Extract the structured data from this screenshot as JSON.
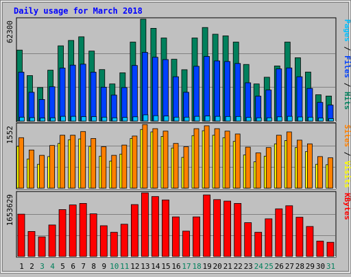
{
  "colors": {
    "background": "#c0c0c0",
    "plot_bg": "#c0c0c0",
    "gridline": "#808080",
    "title": "#0000ff",
    "hits": "#00805c",
    "files": "#0040ff",
    "pages": "#00c0ff",
    "visits": "#ffff00",
    "sites": "#ff8000",
    "kbytes": "#ff0000",
    "weekend_label": "#00805c",
    "weekday_label": "#000000"
  },
  "chart_data": {
    "type": "bar",
    "title": "Daily usage for March 2018",
    "categories": [
      "1",
      "2",
      "3",
      "4",
      "5",
      "6",
      "7",
      "8",
      "9",
      "10",
      "11",
      "12",
      "13",
      "14",
      "15",
      "16",
      "17",
      "18",
      "19",
      "20",
      "21",
      "22",
      "23",
      "24",
      "25",
      "26",
      "27",
      "28",
      "29",
      "30",
      "31"
    ],
    "weekend_days": [
      "3",
      "4",
      "10",
      "11",
      "17",
      "18",
      "24",
      "25",
      "31"
    ],
    "panels": [
      {
        "id": "top",
        "max_label": "62300",
        "ymax": 62300,
        "legend": [
          {
            "text": "Pages",
            "color": "#00c0ff"
          },
          {
            "text": " / ",
            "color": "#000000"
          },
          {
            "text": "Files",
            "color": "#0040ff"
          },
          {
            "text": " / ",
            "color": "#000000"
          },
          {
            "text": "Hits",
            "color": "#00805c"
          }
        ],
        "series": [
          {
            "name": "Hits",
            "color": "#00805c",
            "values": [
              43400,
              27800,
              20500,
              31100,
              46000,
              49300,
              51500,
              42800,
              31500,
              22700,
              29500,
              48300,
              62300,
              56700,
              50800,
              37800,
              31400,
              50800,
              57200,
              53100,
              52100,
              48300,
              34600,
              22700,
              26800,
              33700,
              48300,
              38700,
              30000,
              16100,
              15300
            ]
          },
          {
            "name": "Files",
            "color": "#0040ff",
            "values": [
              29900,
              17600,
              13200,
              21000,
              32400,
              34200,
              34800,
              29900,
              20700,
              15900,
              20500,
              34000,
              42000,
              39000,
              37600,
              27100,
              17600,
              33500,
              39500,
              36800,
              36400,
              35200,
              23400,
              15200,
              19000,
              31900,
              32500,
              27100,
              20000,
              11400,
              9800
            ]
          },
          {
            "name": "Pages",
            "color": "#00c0ff",
            "values": [
              2400,
              2100,
              1900,
              2000,
              2900,
              2900,
              2700,
              2700,
              2400,
              2000,
              2200,
              2600,
              3800,
              3300,
              3100,
              2400,
              2400,
              2900,
              3100,
              2900,
              2800,
              2800,
              2200,
              2000,
              2000,
              2600,
              2900,
              2500,
              2400,
              1900,
              1500
            ]
          }
        ]
      },
      {
        "id": "middle",
        "max_label": "1552",
        "ymax": 1552,
        "legend": [
          {
            "text": "Sites",
            "color": "#ff8000"
          },
          {
            "text": " / ",
            "color": "#000000"
          },
          {
            "text": "Visits",
            "color": "#ffff00"
          }
        ],
        "series": [
          {
            "name": "Visits",
            "color": "#ffff00",
            "values": [
              1020,
              710,
              580,
              770,
              1090,
              1180,
              1200,
              1020,
              780,
              660,
              830,
              1210,
              1430,
              1370,
              1260,
              980,
              750,
              1280,
              1400,
              1290,
              1230,
              1140,
              810,
              640,
              780,
              1080,
              1160,
              990,
              890,
              580,
              570
            ]
          },
          {
            "name": "Sites",
            "color": "#ff8000",
            "values": [
              1230,
              930,
              800,
              1040,
              1290,
              1290,
              1380,
              1210,
              1010,
              800,
              1050,
              1270,
              1550,
              1450,
              1390,
              1090,
              1010,
              1450,
              1520,
              1450,
              1390,
              1320,
              1000,
              860,
              990,
              1290,
              1370,
              1170,
              1080,
              770,
              740
            ]
          }
        ]
      },
      {
        "id": "bottom",
        "max_label": "1653629",
        "ymax": 1653629,
        "legend": [
          {
            "text": "KBytes",
            "color": "#ff0000"
          }
        ],
        "series": [
          {
            "name": "KBytes",
            "color": "#ff0000",
            "values": [
              1100000,
              650000,
              510000,
              820000,
              1220000,
              1340000,
              1380000,
              1110000,
              800000,
              630000,
              840000,
              1350000,
              1653629,
              1560000,
              1470000,
              1030000,
              660000,
              1030000,
              1600000,
              1480000,
              1440000,
              1380000,
              880000,
              630000,
              980000,
              1240000,
              1320000,
              1020000,
              780000,
              400000,
              370000
            ]
          }
        ]
      }
    ]
  }
}
